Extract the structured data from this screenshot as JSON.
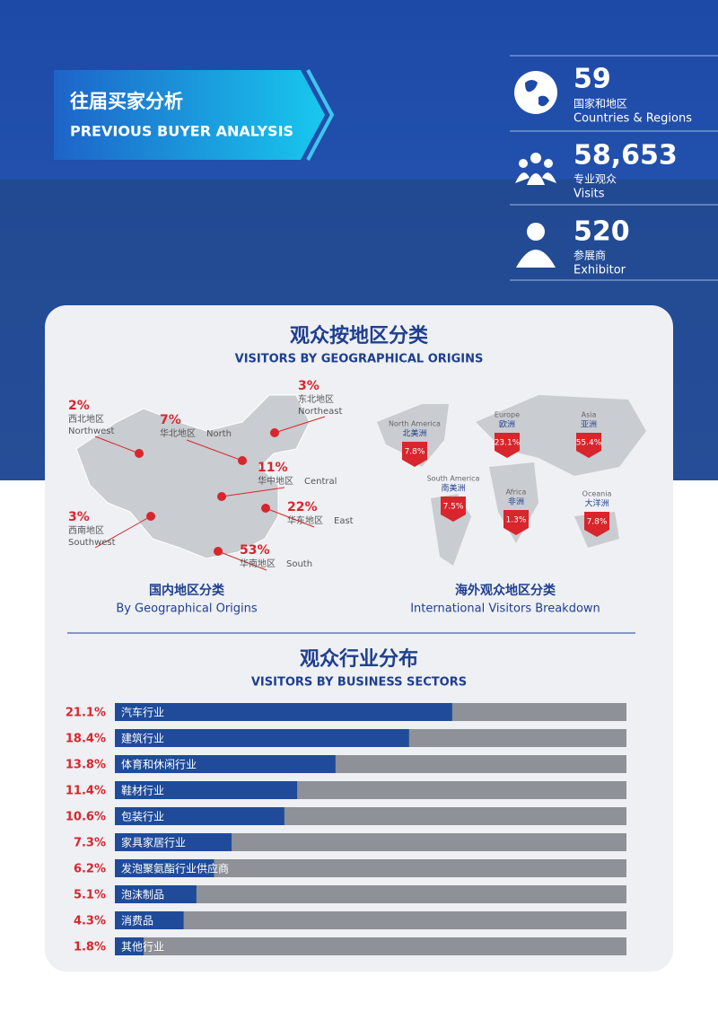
{
  "header": {
    "title": "往届买家分析",
    "subtitle": "PREVIOUS BUYER ANALYSIS"
  },
  "stats": [
    {
      "value": "59",
      "label_cn": "国家和地区",
      "label_en": "Countries & Regions"
    },
    {
      "value": "58,653",
      "label_cn": "专业观众",
      "label_en": "Visits"
    },
    {
      "value": "520",
      "label_cn": "参展商",
      "label_en": "Exhibitor"
    }
  ],
  "geo": {
    "title": "观众按地区分类",
    "subtitle": "VISITORS BY GEOGRAPHICAL ORIGINS",
    "domestic": {
      "caption_cn": "国内地区分类",
      "caption_en": "By Geographical Origins",
      "regions": [
        {
          "value": "2%",
          "cn": "西北地区",
          "en": "Northwest"
        },
        {
          "value": "7%",
          "cn": "华北地区",
          "en": "North"
        },
        {
          "value": "3%",
          "cn": "东北地区",
          "en": "Northeast"
        },
        {
          "value": "11%",
          "cn": "华中地区",
          "en": "Central"
        },
        {
          "value": "22%",
          "cn": "华东地区",
          "en": "East"
        },
        {
          "value": "3%",
          "cn": "西南地区",
          "en": "Southwest"
        },
        {
          "value": "53%",
          "cn": "华南地区",
          "en": "South"
        }
      ]
    },
    "international": {
      "caption_cn": "海外观众地区分类",
      "caption_en": "International Visitors Breakdown",
      "regions": [
        {
          "en": "North America",
          "cn": "北美洲",
          "value": "7.8%"
        },
        {
          "en": "Europe",
          "cn": "欧洲",
          "value": "23.1%"
        },
        {
          "en": "Asia",
          "cn": "亚洲",
          "value": "55.4%"
        },
        {
          "en": "South America",
          "cn": "南美洲",
          "value": "7.5%"
        },
        {
          "en": "Africa",
          "cn": "非洲",
          "value": "1.3%"
        },
        {
          "en": "Oceania",
          "cn": "大洋洲",
          "value": "7.8%"
        }
      ]
    }
  },
  "sectors": {
    "title": "观众行业分布",
    "subtitle": "VISITORS BY BUSINESS SECTORS",
    "categories": [
      "汽车行业",
      "建筑行业",
      "体育和休闲行业",
      "鞋材行业",
      "包装行业",
      "家具家居行业",
      "发泡聚氨酯行业供应商",
      "泡沫制品",
      "消费品",
      "其他行业"
    ],
    "values": [
      21.1,
      18.4,
      13.8,
      11.4,
      10.6,
      7.3,
      6.2,
      5.1,
      4.3,
      1.8
    ],
    "value_labels": [
      "21.1%",
      "18.4%",
      "13.8%",
      "11.4%",
      "10.6%",
      "7.3%",
      "6.2%",
      "5.1%",
      "4.3%",
      "1.8%"
    ],
    "xlim": [
      0,
      32
    ]
  }
}
